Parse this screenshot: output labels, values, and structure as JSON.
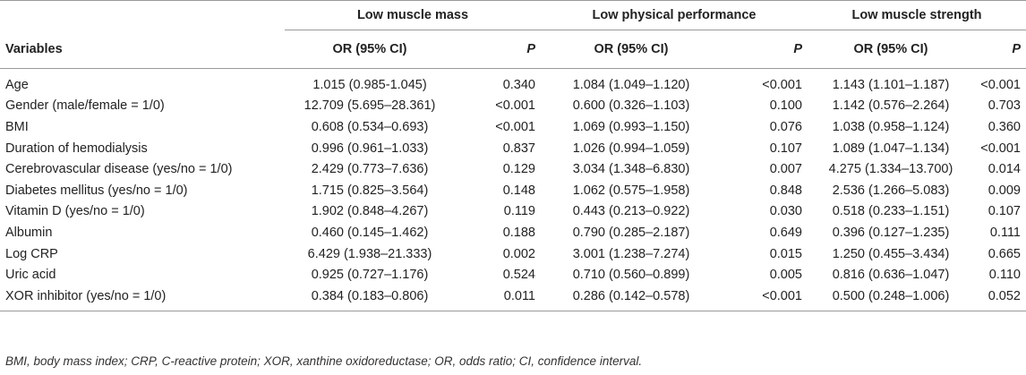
{
  "table": {
    "groups": [
      "Low muscle mass",
      "Low physical performance",
      "Low muscle strength"
    ],
    "headers": {
      "variables": "Variables",
      "or": "OR (95% CI)",
      "p": "P"
    },
    "rows": [
      {
        "variable": "Age",
        "mass_or": "1.015 (0.985-1.045)",
        "mass_p": "0.340",
        "perf_or": "1.084 (1.049–1.120)",
        "perf_p": "<0.001",
        "str_or": "1.143 (1.101–1.187)",
        "str_p": "<0.001"
      },
      {
        "variable": "Gender (male/female = 1/0)",
        "mass_or": "12.709 (5.695–28.361)",
        "mass_p": "<0.001",
        "perf_or": "0.600 (0.326–1.103)",
        "perf_p": "0.100",
        "str_or": "1.142 (0.576–2.264)",
        "str_p": "0.703"
      },
      {
        "variable": "BMI",
        "mass_or": "0.608 (0.534–0.693)",
        "mass_p": "<0.001",
        "perf_or": "1.069 (0.993–1.150)",
        "perf_p": "0.076",
        "str_or": "1.038 (0.958–1.124)",
        "str_p": "0.360"
      },
      {
        "variable": "Duration of hemodialysis",
        "mass_or": "0.996 (0.961–1.033)",
        "mass_p": "0.837",
        "perf_or": "1.026 (0.994–1.059)",
        "perf_p": "0.107",
        "str_or": "1.089 (1.047–1.134)",
        "str_p": "<0.001"
      },
      {
        "variable": "Cerebrovascular disease (yes/no = 1/0)",
        "mass_or": "2.429 (0.773–7.636)",
        "mass_p": "0.129",
        "perf_or": "3.034 (1.348–6.830)",
        "perf_p": "0.007",
        "str_or": "4.275 (1.334–13.700)",
        "str_p": "0.014"
      },
      {
        "variable": "Diabetes mellitus (yes/no = 1/0)",
        "mass_or": "1.715 (0.825–3.564)",
        "mass_p": "0.148",
        "perf_or": "1.062 (0.575–1.958)",
        "perf_p": "0.848",
        "str_or": "2.536 (1.266–5.083)",
        "str_p": "0.009"
      },
      {
        "variable": "Vitamin D (yes/no = 1/0)",
        "mass_or": "1.902 (0.848–4.267)",
        "mass_p": "0.119",
        "perf_or": "0.443 (0.213–0.922)",
        "perf_p": "0.030",
        "str_or": "0.518 (0.233–1.151)",
        "str_p": "0.107"
      },
      {
        "variable": "Albumin",
        "mass_or": "0.460 (0.145–1.462)",
        "mass_p": "0.188",
        "perf_or": "0.790 (0.285–2.187)",
        "perf_p": "0.649",
        "str_or": "0.396 (0.127–1.235)",
        "str_p": "0.111"
      },
      {
        "variable": "Log CRP",
        "mass_or": "6.429 (1.938–21.333)",
        "mass_p": "0.002",
        "perf_or": "3.001 (1.238–7.274)",
        "perf_p": "0.015",
        "str_or": "1.250 (0.455–3.434)",
        "str_p": "0.665"
      },
      {
        "variable": "Uric acid",
        "mass_or": "0.925 (0.727–1.176)",
        "mass_p": "0.524",
        "perf_or": "0.710 (0.560–0.899)",
        "perf_p": "0.005",
        "str_or": "0.816 (0.636–1.047)",
        "str_p": "0.110"
      },
      {
        "variable": "XOR inhibitor (yes/no = 1/0)",
        "mass_or": "0.384 (0.183–0.806)",
        "mass_p": "0.011",
        "perf_or": "0.286 (0.142–0.578)",
        "perf_p": "<0.001",
        "str_or": "0.500 (0.248–1.006)",
        "str_p": "0.052"
      }
    ]
  },
  "footnote": "BMI, body mass index; CRP, C-reactive protein; XOR, xanthine oxidoreductase; OR, odds ratio; CI, confidence interval."
}
